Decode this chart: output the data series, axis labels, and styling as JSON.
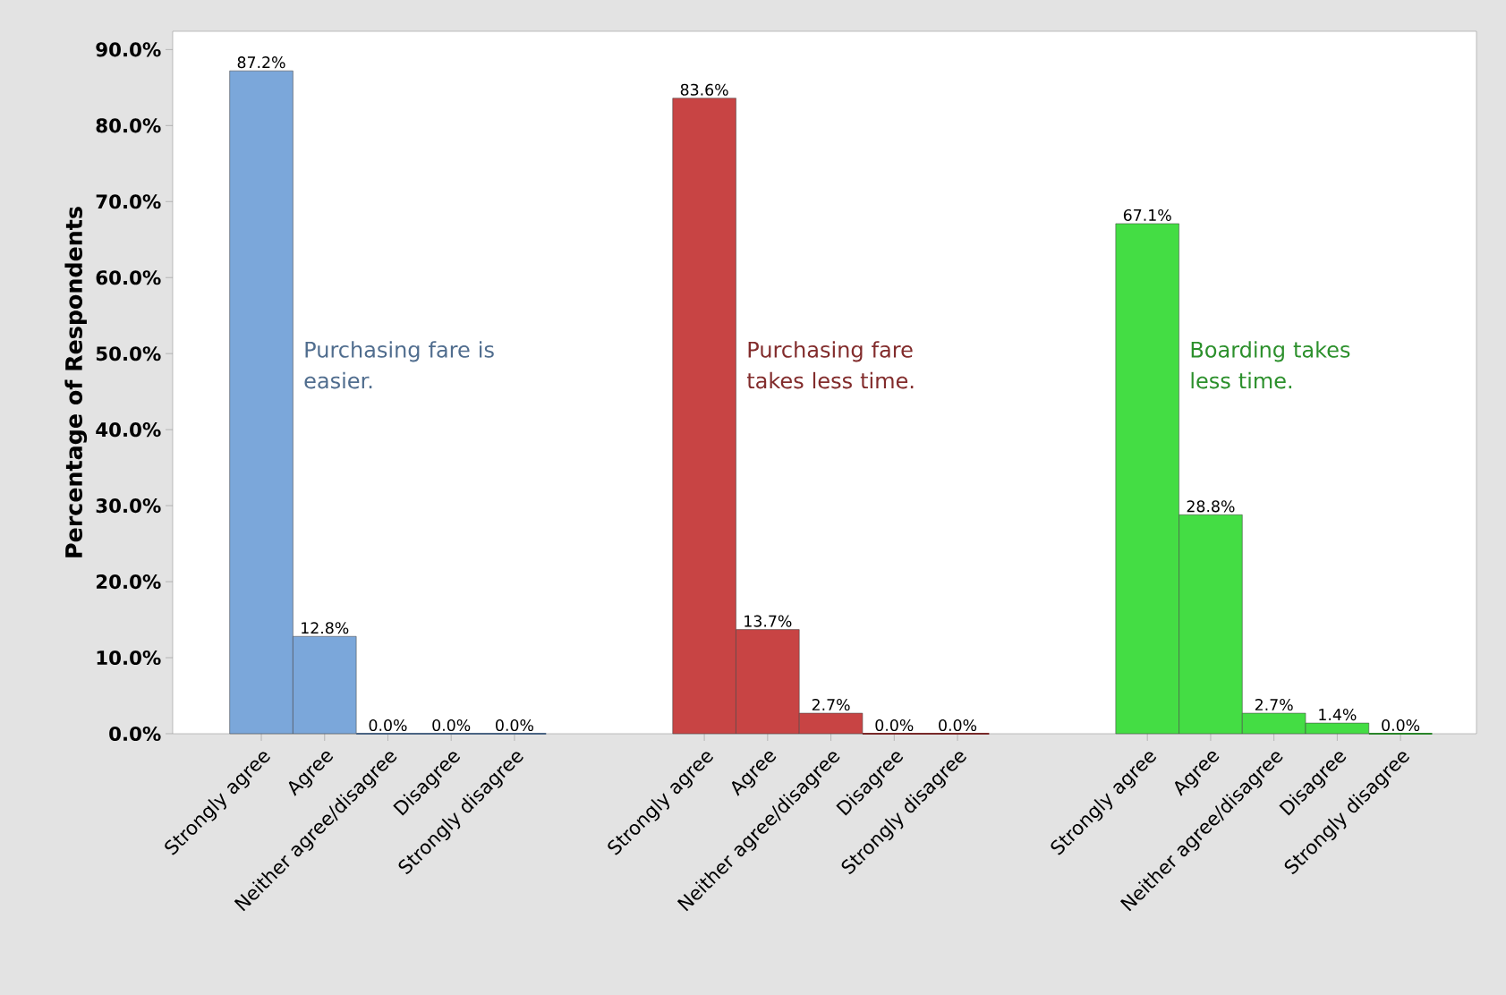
{
  "chart_data": {
    "type": "bar",
    "ylabel": "Percentage of Respondents",
    "categories": [
      "Strongly agree",
      "Agree",
      "Neither agree/disagree",
      "Disagree",
      "Strongly disagree",
      null,
      null,
      "Strongly agree",
      "Agree",
      "Neither agree/disagree",
      "Disagree",
      "Strongly disagree",
      null,
      null,
      "Strongly agree",
      "Agree",
      "Neither agree/disagree",
      "Disagree",
      "Strongly disagree"
    ],
    "series": [
      {
        "name": "Purchasing fare is easier.",
        "color": "#7ba7da",
        "values": [
          87.2,
          12.8,
          0.0,
          0.0,
          0.0,
          null,
          null,
          null,
          null,
          null,
          null,
          null,
          null,
          null,
          null,
          null,
          null,
          null,
          null
        ],
        "value_labels": [
          "87.2%",
          "12.8%",
          "0.0%",
          "0.0%",
          "0.0%",
          null,
          null,
          null,
          null,
          null,
          null,
          null,
          null,
          null,
          null,
          null,
          null,
          null,
          null
        ]
      },
      {
        "name": "Purchasing fare takes less time.",
        "color": "#c84444",
        "values": [
          null,
          null,
          null,
          null,
          null,
          null,
          null,
          83.6,
          13.7,
          2.7,
          0.0,
          0.0,
          null,
          null,
          null,
          null,
          null,
          null,
          null
        ],
        "value_labels": [
          null,
          null,
          null,
          null,
          null,
          null,
          null,
          "83.6%",
          "13.7%",
          "2.7%",
          "0.0%",
          "0.0%",
          null,
          null,
          null,
          null,
          null,
          null,
          null
        ]
      },
      {
        "name": "Boarding takes less time.",
        "color": "#44dd44",
        "values": [
          null,
          null,
          null,
          null,
          null,
          null,
          null,
          null,
          null,
          null,
          null,
          null,
          null,
          null,
          67.1,
          28.8,
          2.7,
          1.4,
          0.0
        ],
        "value_labels": [
          null,
          null,
          null,
          null,
          null,
          null,
          null,
          null,
          null,
          null,
          null,
          null,
          null,
          null,
          "67.1%",
          "28.8%",
          "2.7%",
          "1.4%",
          "0.0%"
        ]
      }
    ],
    "ylim": [
      0,
      92.4
    ],
    "yticks": [
      {
        "value": 0,
        "label": "0.0%"
      },
      {
        "value": 10,
        "label": "10.0%"
      },
      {
        "value": 20,
        "label": "20.0%"
      },
      {
        "value": 30,
        "label": "30.0%"
      },
      {
        "value": 40,
        "label": "40.0%"
      },
      {
        "value": 50,
        "label": "50.0%"
      },
      {
        "value": 60,
        "label": "60.0%"
      },
      {
        "value": 70,
        "label": "70.0%"
      },
      {
        "value": 80,
        "label": "80.0%"
      },
      {
        "value": 90,
        "label": "90.0%"
      }
    ],
    "grid": false
  }
}
